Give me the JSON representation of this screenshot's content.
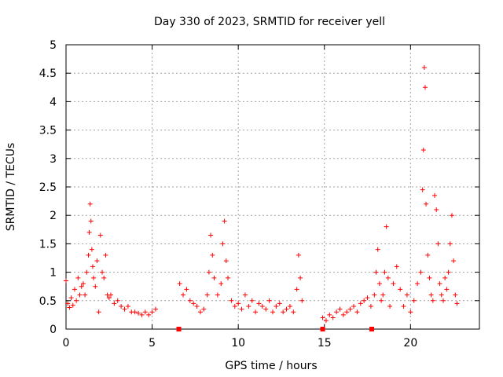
{
  "chart_data": {
    "type": "scatter",
    "title": "Day 330 of 2023, SRMTID for receiver yell",
    "xlabel": "GPS time / hours",
    "ylabel": "SRMTID / TECUs",
    "xlim": [
      0,
      24
    ],
    "ylim": [
      0,
      5
    ],
    "x_ticks": [
      0,
      5,
      10,
      15,
      20
    ],
    "x_tick_labels": [
      "0",
      "5",
      "10",
      "15",
      "20"
    ],
    "y_ticks": [
      0,
      0.5,
      1,
      1.5,
      2,
      2.5,
      3,
      3.5,
      4,
      4.5,
      5
    ],
    "y_tick_labels": [
      "0",
      "0.5",
      "1",
      "1.5",
      "2",
      "2.5",
      "3",
      "3.5",
      "4",
      "4.5",
      "5"
    ],
    "grid": true,
    "marker": "plus",
    "color": "#ff0000",
    "gap_markers": [
      6.55,
      14.9,
      17.75
    ],
    "series": [
      {
        "name": "SRMTID",
        "x": [
          0.0,
          0.1,
          0.2,
          0.3,
          0.4,
          0.5,
          0.6,
          0.7,
          0.8,
          0.9,
          1.0,
          1.1,
          1.2,
          1.3,
          1.35,
          1.4,
          1.45,
          1.5,
          1.55,
          1.6,
          1.7,
          1.8,
          1.9,
          2.0,
          2.1,
          2.2,
          2.3,
          2.4,
          2.5,
          2.6,
          2.8,
          3.0,
          3.2,
          3.4,
          3.6,
          3.8,
          4.0,
          4.2,
          4.4,
          4.6,
          4.8,
          5.0,
          5.2,
          6.6,
          6.8,
          7.0,
          7.2,
          7.4,
          7.6,
          7.8,
          8.0,
          8.2,
          8.3,
          8.4,
          8.5,
          8.6,
          8.8,
          9.0,
          9.1,
          9.2,
          9.3,
          9.4,
          9.6,
          9.8,
          10.0,
          10.2,
          10.4,
          10.6,
          10.8,
          11.0,
          11.2,
          11.4,
          11.6,
          11.8,
          12.0,
          12.2,
          12.4,
          12.6,
          12.8,
          13.0,
          13.2,
          13.4,
          13.5,
          13.6,
          13.7,
          14.9,
          15.1,
          15.3,
          15.5,
          15.7,
          15.9,
          16.1,
          16.3,
          16.5,
          16.7,
          16.9,
          17.1,
          17.3,
          17.5,
          17.7,
          17.9,
          18.0,
          18.1,
          18.2,
          18.3,
          18.4,
          18.5,
          18.6,
          18.7,
          18.8,
          19.0,
          19.2,
          19.4,
          19.6,
          19.8,
          20.0,
          20.2,
          20.4,
          20.6,
          20.7,
          20.75,
          20.8,
          20.85,
          20.9,
          21.0,
          21.1,
          21.2,
          21.3,
          21.4,
          21.5,
          21.6,
          21.7,
          21.8,
          21.9,
          22.0,
          22.1,
          22.2,
          22.3,
          22.4,
          22.5,
          22.6,
          22.7
        ],
        "y": [
          0.85,
          0.45,
          0.38,
          0.55,
          0.42,
          0.7,
          0.5,
          0.9,
          0.6,
          0.75,
          0.8,
          0.6,
          1.0,
          1.3,
          1.7,
          2.2,
          1.9,
          1.4,
          1.1,
          0.9,
          0.75,
          1.2,
          0.3,
          1.65,
          1.0,
          0.9,
          1.3,
          0.6,
          0.55,
          0.6,
          0.45,
          0.5,
          0.4,
          0.35,
          0.4,
          0.3,
          0.3,
          0.28,
          0.25,
          0.3,
          0.25,
          0.3,
          0.35,
          0.8,
          0.6,
          0.7,
          0.5,
          0.45,
          0.4,
          0.3,
          0.35,
          0.6,
          1.0,
          1.65,
          1.3,
          0.9,
          0.6,
          0.8,
          1.5,
          1.9,
          1.2,
          0.9,
          0.5,
          0.4,
          0.45,
          0.35,
          0.6,
          0.4,
          0.5,
          0.3,
          0.45,
          0.4,
          0.35,
          0.5,
          0.3,
          0.4,
          0.45,
          0.3,
          0.35,
          0.4,
          0.3,
          0.7,
          1.3,
          0.9,
          0.5,
          0.2,
          0.15,
          0.25,
          0.2,
          0.3,
          0.35,
          0.25,
          0.3,
          0.35,
          0.4,
          0.3,
          0.45,
          0.5,
          0.55,
          0.4,
          0.6,
          1.0,
          1.4,
          0.8,
          0.5,
          0.6,
          1.0,
          1.8,
          0.9,
          0.4,
          0.8,
          1.1,
          0.7,
          0.4,
          0.6,
          0.3,
          0.5,
          0.8,
          1.0,
          2.45,
          3.15,
          4.6,
          4.25,
          2.2,
          1.3,
          0.9,
          0.6,
          0.5,
          2.35,
          2.1,
          1.5,
          0.8,
          0.6,
          0.5,
          0.9,
          0.7,
          1.0,
          1.5,
          2.0,
          1.2,
          0.6,
          0.45
        ]
      }
    ]
  }
}
